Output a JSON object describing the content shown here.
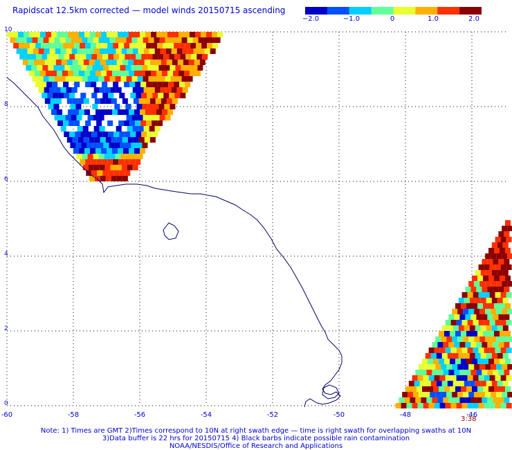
{
  "title": "Rapidscat 12.5km corrected — model winds 20150715 ascending",
  "colorbar": {
    "labels": [
      "−2.0",
      "−1.0",
      "0",
      "1.0",
      "2.0"
    ],
    "min": -2.0,
    "max": 2.0,
    "colors": [
      "#0000c8",
      "#0050ff",
      "#00d0ff",
      "#60ff9a",
      "#e8ff30",
      "#ffb000",
      "#ff3000",
      "#8b0000"
    ]
  },
  "axes": {
    "x_ticks": [
      "-60",
      "-58",
      "-56",
      "-54",
      "-52",
      "-50",
      "-48",
      "-46"
    ],
    "y_ticks": [
      "10",
      "8",
      "6",
      "4",
      "2",
      "0"
    ],
    "lon_range": [
      -60,
      -44.6
    ],
    "lat_range": [
      0,
      10
    ],
    "grid": "dotted"
  },
  "time_label": "3:38",
  "notes": [
    "Note: 1) Times are GMT 2)Times correspond to 10N at right swath edge — time is right swath for overlapping swaths at 10N",
    "3)Data buffer is 22 hrs for 20150715 4) Black barbs indicate possible rain contamination",
    "NOAA/NESDIS/Office of Research and Applications"
  ]
}
